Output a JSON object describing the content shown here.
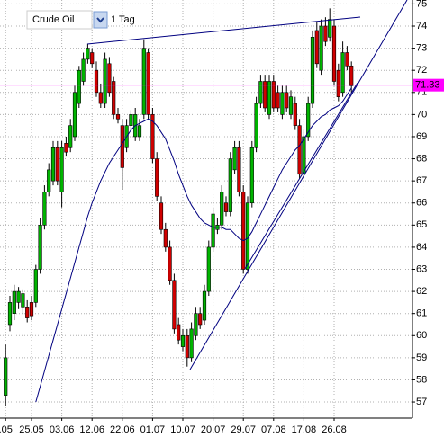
{
  "chart_data": {
    "type": "candlestick",
    "instrument": "Crude Oil",
    "period": "1 Tag",
    "categories": [
      ".05",
      null,
      null,
      null,
      null,
      null,
      "25.05",
      null,
      null,
      null,
      null,
      null,
      null,
      "03.06",
      null,
      null,
      null,
      null,
      null,
      null,
      "12.06",
      null,
      null,
      null,
      null,
      null,
      null,
      "22.06",
      null,
      null,
      null,
      null,
      null,
      null,
      "01.07",
      null,
      null,
      null,
      null,
      null,
      null,
      "10.07",
      null,
      null,
      null,
      null,
      null,
      null,
      "20.07",
      null,
      null,
      null,
      null,
      null,
      null,
      "29.07",
      null,
      null,
      null,
      null,
      null,
      null,
      "07.08",
      null,
      null,
      null,
      null,
      null,
      null,
      "17.08",
      null,
      null,
      null,
      null,
      null,
      null,
      "26.08",
      null,
      null,
      null,
      null
    ],
    "open": [
      57.3,
      60.5,
      61.0,
      61.5,
      61.3,
      61.3,
      61.5,
      61.5,
      63.0,
      65.0,
      66.5,
      67.0,
      68.5,
      66.5,
      68.7,
      68.5,
      69.0,
      70.5,
      71.5,
      72.5,
      72.8,
      72.0,
      71.0,
      70.5,
      72.3,
      71.5,
      70.0,
      69.5,
      68.5,
      69.5,
      69.0,
      69.0,
      70.0,
      72.8,
      70.0,
      68.0,
      66.0,
      64.8,
      64.0,
      62.5,
      60.5,
      59.5,
      60.0,
      59.0,
      60.0,
      61.0,
      60.7,
      62.0,
      64.0,
      64.8,
      65.0,
      66.0,
      65.6,
      67.5,
      68.5,
      66.5,
      63.0,
      66.0,
      68.5,
      70.5,
      71.5,
      70.0,
      71.5,
      71.0,
      70.0,
      71.0,
      70.0,
      70.5,
      69.5,
      67.3,
      69.0,
      70.5,
      73.8,
      72.0,
      74.0,
      73.5,
      74.0,
      72.0,
      71.0,
      72.8,
      72.2
    ],
    "high": [
      59.6,
      61.8,
      62.3,
      62.2,
      62.1,
      61.6,
      61.8,
      63.2,
      65.3,
      66.8,
      67.8,
      68.8,
      68.8,
      68.8,
      69.0,
      69.8,
      71.3,
      72.2,
      72.8,
      73.2,
      73.0,
      72.4,
      71.4,
      72.8,
      72.6,
      71.7,
      70.3,
      69.8,
      69.8,
      70.2,
      70.3,
      69.8,
      73.4,
      73.0,
      70.3,
      68.3,
      66.3,
      65.1,
      64.3,
      62.8,
      60.8,
      60.3,
      60.3,
      60.6,
      61.3,
      61.3,
      62.3,
      64.3,
      65.8,
      65.3,
      66.8,
      66.3,
      68.3,
      68.8,
      68.8,
      66.8,
      66.3,
      68.8,
      70.8,
      71.8,
      71.8,
      71.8,
      71.8,
      71.3,
      71.3,
      71.3,
      71.1,
      70.8,
      69.8,
      69.3,
      70.8,
      73.8,
      74.2,
      74.3,
      74.4,
      74.8,
      74.3,
      72.3,
      73.3,
      73.1,
      72.4
    ],
    "low": [
      56.8,
      60.2,
      60.7,
      61.2,
      61.0,
      60.6,
      60.7,
      61.3,
      62.8,
      64.8,
      66.3,
      66.8,
      66.8,
      65.8,
      68.1,
      68.3,
      68.8,
      70.3,
      71.3,
      72.3,
      72.1,
      70.8,
      70.3,
      70.3,
      70.8,
      69.8,
      69.6,
      66.6,
      68.3,
      69.3,
      68.8,
      68.8,
      69.8,
      69.8,
      67.8,
      66.1,
      64.6,
      63.8,
      62.3,
      60.1,
      59.6,
      59.3,
      58.6,
      58.8,
      59.8,
      60.3,
      60.5,
      61.8,
      63.8,
      64.6,
      64.8,
      65.4,
      65.4,
      67.3,
      66.3,
      62.8,
      62.8,
      65.8,
      68.3,
      70.3,
      70.1,
      69.8,
      70.1,
      70.1,
      69.8,
      70.1,
      69.8,
      69.3,
      67.1,
      67.1,
      68.8,
      70.3,
      72.1,
      71.8,
      73.1,
      73.3,
      71.3,
      70.6,
      70.8,
      72.0,
      71.0
    ],
    "close": [
      59.0,
      61.5,
      62.0,
      62.0,
      61.9,
      60.8,
      60.9,
      63.0,
      65.0,
      66.5,
      67.5,
      68.5,
      67.0,
      68.5,
      68.3,
      69.5,
      71.0,
      72.0,
      72.5,
      73.0,
      72.3,
      71.0,
      70.5,
      72.5,
      71.0,
      70.0,
      69.8,
      67.6,
      69.5,
      70.0,
      70.0,
      69.5,
      73.0,
      70.0,
      68.0,
      66.3,
      64.8,
      64.0,
      62.5,
      60.3,
      59.8,
      60.0,
      59.0,
      60.3,
      61.0,
      60.5,
      62.0,
      64.0,
      65.5,
      65.0,
      66.5,
      65.6,
      68.0,
      68.5,
      66.5,
      63.0,
      66.0,
      68.5,
      70.5,
      71.5,
      70.3,
      71.5,
      70.3,
      70.3,
      71.0,
      70.3,
      70.8,
      69.5,
      67.3,
      69.0,
      70.5,
      73.5,
      72.3,
      74.0,
      73.3,
      74.3,
      71.5,
      70.8,
      72.8,
      72.2,
      71.3
    ],
    "up_color": "#00b400",
    "down_color": "#d00000",
    "moving_average": {
      "color": "#000080",
      "values": [
        null,
        null,
        null,
        null,
        null,
        null,
        null,
        57.0,
        57.7,
        58.4,
        59.1,
        59.8,
        60.5,
        61.2,
        61.9,
        62.6,
        63.3,
        64.0,
        64.7,
        65.4,
        66.0,
        66.5,
        67.0,
        67.4,
        67.8,
        68.1,
        68.4,
        68.7,
        69.0,
        69.3,
        69.5,
        69.6,
        69.7,
        69.8,
        69.7,
        69.5,
        69.2,
        68.9,
        68.4,
        67.9,
        67.3,
        66.8,
        66.3,
        65.9,
        65.6,
        65.3,
        65.1,
        65.0,
        64.9,
        64.9,
        64.9,
        64.8,
        64.8,
        64.6,
        64.4,
        64.3,
        64.4,
        64.7,
        65.1,
        65.5,
        65.9,
        66.3,
        66.7,
        67.1,
        67.5,
        67.8,
        68.1,
        68.4,
        68.6,
        68.9,
        69.2,
        69.5,
        69.7,
        69.9,
        70.0,
        70.2,
        70.3,
        70.4,
        70.6,
        70.9,
        71.2
      ]
    },
    "last_price": 71.33,
    "last_price_color": "#ff00ff",
    "ylim": [
      56.27,
      75.18
    ],
    "yticks": [
      57,
      58,
      59,
      60,
      61,
      62,
      63,
      64,
      65,
      66,
      67,
      68,
      69,
      70,
      71,
      72,
      73,
      74,
      75
    ],
    "grid": true
  }
}
